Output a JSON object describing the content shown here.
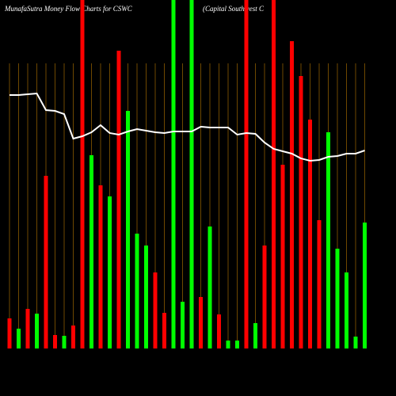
{
  "chart_data": {
    "type": "bar-line",
    "title": "MunafaSutra  Money Flow  Charts for CSWC",
    "subtitle": "(Capital Southwest C",
    "ylim": [
      0,
      440
    ],
    "grid_color": "#8b5a00",
    "bars": {
      "values": [
        38,
        25,
        50,
        44,
        218,
        17,
        16,
        29,
        440,
        244,
        206,
        192,
        376,
        300,
        145,
        130,
        96,
        45,
        440,
        59,
        440,
        65,
        154,
        43,
        10,
        10,
        440,
        32,
        130,
        440,
        232,
        388,
        344,
        289,
        162,
        273,
        126,
        96,
        15,
        159
      ],
      "colors": [
        "#ff0000",
        "#00ff00",
        "#ff0000",
        "#00ff00",
        "#ff0000",
        "#ff0000",
        "#00ff00",
        "#ff0000",
        "#ff0000",
        "#00ff00",
        "#ff0000",
        "#00ff00",
        "#ff0000",
        "#00ff00",
        "#00ff00",
        "#00ff00",
        "#ff0000",
        "#ff0000",
        "#00ff00",
        "#00ff00",
        "#00ff00",
        "#ff0000",
        "#00ff00",
        "#ff0000",
        "#00ff00",
        "#00ff00",
        "#ff0000",
        "#00ff00",
        "#ff0000",
        "#ff0000",
        "#ff0000",
        "#ff0000",
        "#ff0000",
        "#ff0000",
        "#ff0000",
        "#00ff00",
        "#00ff00",
        "#00ff00",
        "#00ff00",
        "#00ff00"
      ]
    },
    "line": {
      "color": "#ffffff",
      "values": [
        320,
        320,
        321,
        322,
        301,
        300,
        296,
        265,
        268,
        273,
        282,
        272,
        270,
        274,
        277,
        275,
        273,
        272,
        274,
        274,
        274,
        280,
        279,
        279,
        279,
        270,
        272,
        271,
        260,
        252,
        249,
        246,
        240,
        237,
        238,
        242,
        243,
        246,
        246,
        250
      ]
    }
  }
}
